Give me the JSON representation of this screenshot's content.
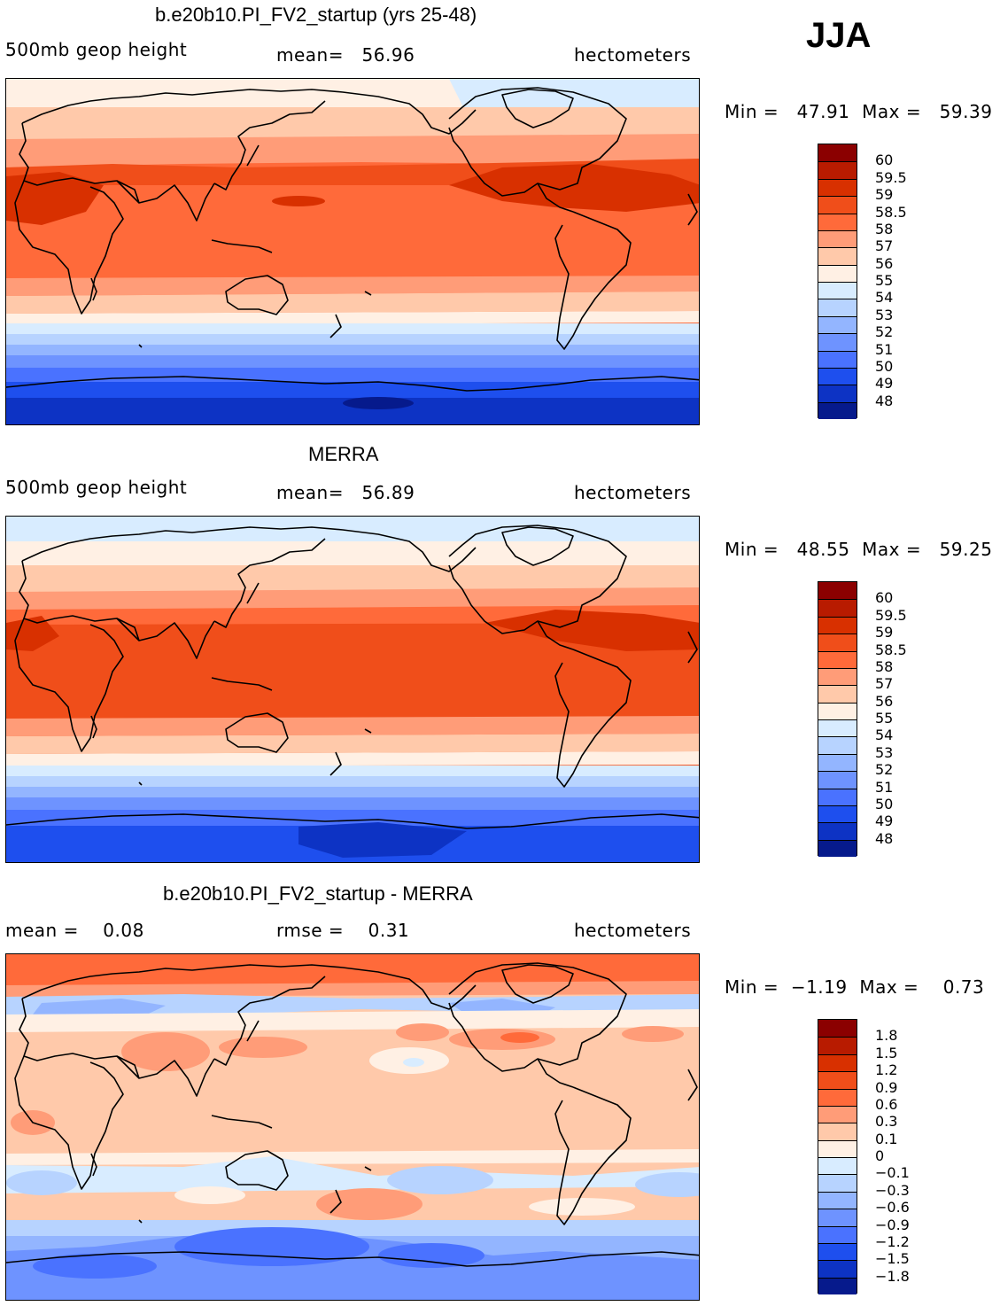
{
  "season": "JJA",
  "panels": [
    {
      "title": "b.e20b10.PI_FV2_startup (yrs 25-48)",
      "left_label": "500mb geop height",
      "center_label": "mean=   56.96",
      "right_label": "hectometers",
      "minmax": "Min =   47.91  Max =   59.39",
      "colorbar_labels": [
        "60",
        "59.5",
        "59",
        "58.5",
        "58",
        "57",
        "56",
        "55",
        "54",
        "53",
        "52",
        "51",
        "50",
        "49",
        "48"
      ],
      "colors": [
        "#8b0000",
        "#b81b00",
        "#d83000",
        "#f04e1a",
        "#ff6a3a",
        "#ff9c78",
        "#ffc9aa",
        "#fff0e4",
        "#d8ecff",
        "#b7d3ff",
        "#93b5ff",
        "#6e93ff",
        "#4a72ff",
        "#1e4fee",
        "#0d33c4",
        "#061a8c"
      ]
    },
    {
      "title": "MERRA",
      "left_label": "500mb geop height",
      "center_label": "mean=   56.89",
      "right_label": "hectometers",
      "minmax": "Min =   48.55  Max =   59.25",
      "colorbar_labels": [
        "60",
        "59.5",
        "59",
        "58.5",
        "58",
        "57",
        "56",
        "55",
        "54",
        "53",
        "52",
        "51",
        "50",
        "49",
        "48"
      ],
      "colors": [
        "#8b0000",
        "#b81b00",
        "#d83000",
        "#f04e1a",
        "#ff6a3a",
        "#ff9c78",
        "#ffc9aa",
        "#fff0e4",
        "#d8ecff",
        "#b7d3ff",
        "#93b5ff",
        "#6e93ff",
        "#4a72ff",
        "#1e4fee",
        "#0d33c4",
        "#061a8c"
      ]
    },
    {
      "title": "b.e20b10.PI_FV2_startup - MERRA",
      "left_label": "mean =    0.08",
      "center_label": "rmse =    0.31",
      "right_label": "hectometers",
      "minmax": "Min =  −1.19  Max =    0.73",
      "colorbar_labels": [
        "1.8",
        "1.5",
        "1.2",
        "0.9",
        "0.6",
        "0.3",
        "0.1",
        "0",
        "−0.1",
        "−0.3",
        "−0.6",
        "−0.9",
        "−1.2",
        "−1.5",
        "−1.8"
      ],
      "colors": [
        "#8b0000",
        "#b81b00",
        "#d83000",
        "#f04e1a",
        "#ff6a3a",
        "#ff9c78",
        "#ffc9aa",
        "#fff0e4",
        "#d8ecff",
        "#b7d3ff",
        "#93b5ff",
        "#6e93ff",
        "#4a72ff",
        "#1e4fee",
        "#0d33c4",
        "#061a8c"
      ]
    }
  ]
}
